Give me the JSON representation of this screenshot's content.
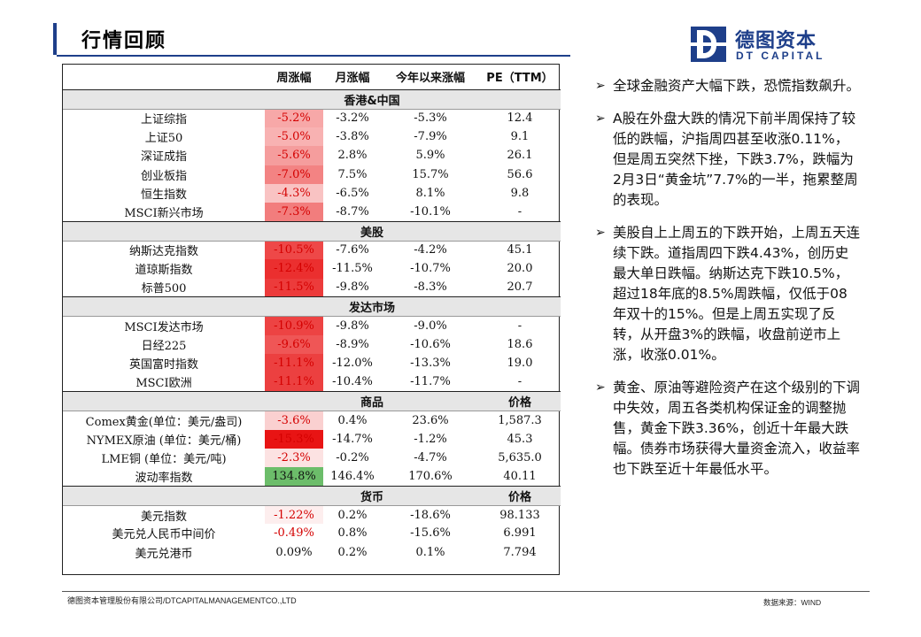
{
  "page": {
    "title": "行情回顾"
  },
  "logo": {
    "cn": "德图资本",
    "en": "DT CAPITAL"
  },
  "table": {
    "headers": [
      "",
      "周涨幅",
      "月涨幅",
      "今年以来涨幅",
      "PE（TTM）"
    ],
    "sections": [
      {
        "label": "香港&中国",
        "price_label": "",
        "rows": [
          {
            "name": "上证综指",
            "week": "-5.2%",
            "month": "-3.2%",
            "ytd": "-5.3%",
            "pe": "12.4",
            "bg": "#f7a8a8"
          },
          {
            "name": "上证50",
            "week": "-5.0%",
            "month": "-3.8%",
            "ytd": "-7.9%",
            "pe": "9.1",
            "bg": "#f8b2b2"
          },
          {
            "name": "深证成指",
            "week": "-5.6%",
            "month": "2.8%",
            "ytd": "5.9%",
            "pe": "26.1",
            "bg": "#f59d9d"
          },
          {
            "name": "创业板指",
            "week": "-7.0%",
            "month": "7.5%",
            "ytd": "15.7%",
            "pe": "56.6",
            "bg": "#f38383"
          },
          {
            "name": "恒生指数",
            "week": "-4.3%",
            "month": "-6.5%",
            "ytd": "8.1%",
            "pe": "9.8",
            "bg": "#f9c3c3"
          },
          {
            "name": "MSCI新兴市场",
            "week": "-7.3%",
            "month": "-8.7%",
            "ytd": "-10.1%",
            "pe": "-",
            "bg": "#f27d7d"
          }
        ]
      },
      {
        "label": "美股",
        "price_label": "",
        "rows": [
          {
            "name": "纳斯达克指数",
            "week": "-10.5%",
            "month": "-7.6%",
            "ytd": "-4.2%",
            "pe": "45.1",
            "bg": "#ee4848"
          },
          {
            "name": "道琼斯指数",
            "week": "-12.4%",
            "month": "-11.5%",
            "ytd": "-10.7%",
            "pe": "20.0",
            "bg": "#eb2f2f"
          },
          {
            "name": "标普500",
            "week": "-11.5%",
            "month": "-9.8%",
            "ytd": "-8.3%",
            "pe": "20.7",
            "bg": "#ec3b3b"
          }
        ]
      },
      {
        "label": "发达市场",
        "price_label": "",
        "rows": [
          {
            "name": "MSCI发达市场",
            "week": "-10.9%",
            "month": "-9.8%",
            "ytd": "-9.0%",
            "pe": "-",
            "bg": "#ed4343"
          },
          {
            "name": "日经225",
            "week": "-9.6%",
            "month": "-8.9%",
            "ytd": "-10.6%",
            "pe": "18.6",
            "bg": "#ef5656"
          },
          {
            "name": "英国富时指数",
            "week": "-11.1%",
            "month": "-12.0%",
            "ytd": "-13.3%",
            "pe": "19.0",
            "bg": "#ec4040"
          },
          {
            "name": "MSCI欧洲",
            "week": "-11.1%",
            "month": "-10.4%",
            "ytd": "-11.7%",
            "pe": "-",
            "bg": "#ec4040"
          }
        ]
      },
      {
        "label": "商品",
        "price_label": "价格",
        "rows": [
          {
            "name": "Comex黄金(单位：美元/盎司)",
            "week": "-3.6%",
            "month": "0.4%",
            "ytd": "23.6%",
            "pe": "1,587.3",
            "bg": "#fad0d0"
          },
          {
            "name": "NYMEX原油 (单位：美元/桶)",
            "week": "-15.3%",
            "month": "-14.7%",
            "ytd": "-1.2%",
            "pe": "45.3",
            "bg": "#e81414"
          },
          {
            "name": "LME铜 (单位：美元/吨)",
            "week": "-2.3%",
            "month": "-0.2%",
            "ytd": "-4.7%",
            "pe": "5,635.0",
            "bg": "#fce2e2"
          },
          {
            "name": "波动率指数",
            "week": "134.8%",
            "month": "146.4%",
            "ytd": "170.6%",
            "pe": "40.11",
            "bg": "#6cbd6a",
            "positive": true
          }
        ]
      },
      {
        "label": "货币",
        "price_label": "价格",
        "rows": [
          {
            "name": "美元指数",
            "week": "-1.22%",
            "month": "0.2%",
            "ytd": "-18.6%",
            "pe": "98.133",
            "bg": "#fdeeee"
          },
          {
            "name": "美元兑人民币中间价",
            "week": "-0.49%",
            "month": "0.8%",
            "ytd": "-15.6%",
            "pe": "6.991",
            "bg": "#ffffff"
          },
          {
            "name": "美元兑港币",
            "week": "0.09%",
            "month": "0.2%",
            "ytd": "0.1%",
            "pe": "7.794",
            "bg": "#ffffff",
            "positive": true
          }
        ]
      }
    ]
  },
  "bullets": [
    "全球金融资产大幅下跌，恐慌指数飙升。",
    "A股在外盘大跌的情况下前半周保持了较低的跌幅，沪指周四甚至收涨0.11%，但是周五突然下挫，下跌3.7%，跌幅为2月3日“黄金坑”7.7%的一半，拖累整周的表现。",
    "美股自上上周五的下跌开始，上周五天连续下跌。道指周四下跌4.43%，创历史最大单日跌幅。纳斯达克下跌10.5%，超过18年底的8.5%周跌幅，仅低于08年双十的15%。但是上周五实现了反转，从开盘3%的跌幅，收盘前逆市上涨，收涨0.01%。",
    "黄金、原油等避险资产在这个级别的下调中失效，周五各类机构保证金的调整抛售，黄金下跌3.36%，创近十年最大跌幅。债券市场获得大量资金流入，收益率也下跌至近十年最低水平。"
  ],
  "footer": {
    "company": "德图资本管理股份有限公司/DTCAPITALMANAGEMENTCO.,LTD",
    "source": "数据来源：WIND"
  }
}
